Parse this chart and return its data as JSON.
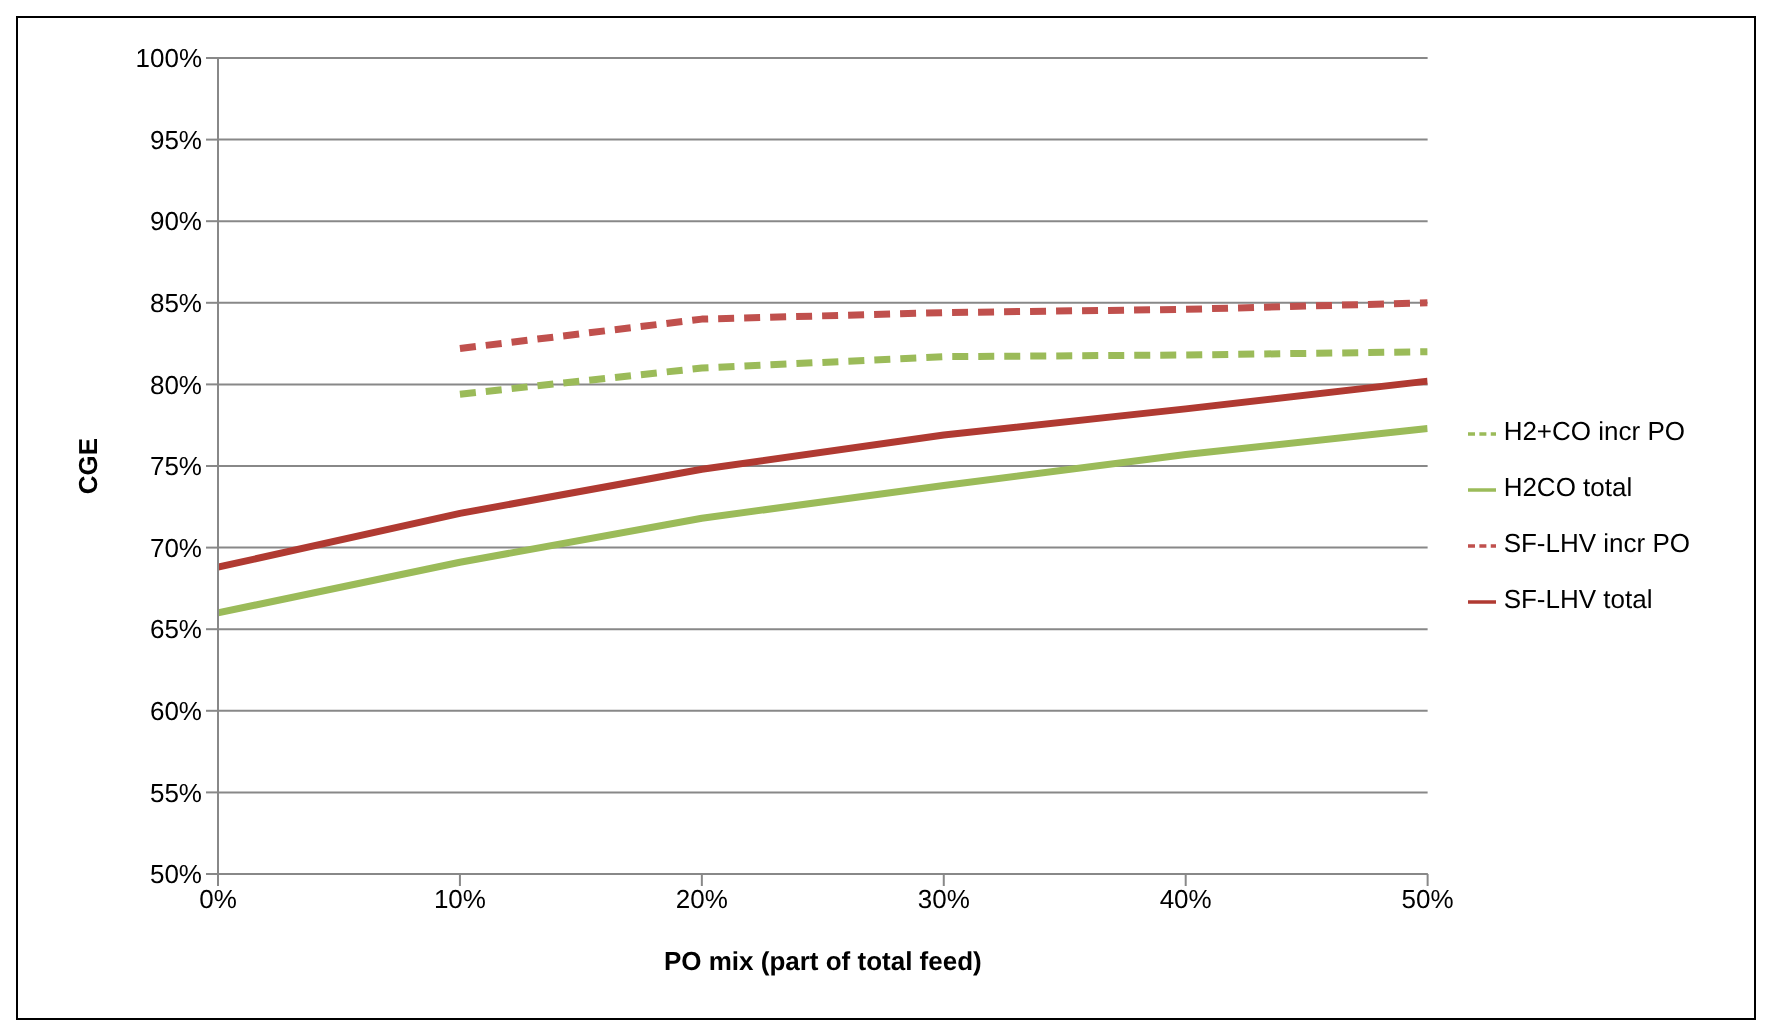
{
  "chart_data": {
    "type": "line",
    "xlabel": "PO mix (part of total feed)",
    "ylabel": "CGE",
    "x": [
      0,
      10,
      20,
      30,
      40,
      50
    ],
    "series": [
      {
        "name": "SF-LHV total",
        "color": "#b03a32",
        "line_style": "solid",
        "values": [
          68.8,
          72.1,
          74.8,
          76.9,
          78.5,
          80.2
        ]
      },
      {
        "name": "H2CO total",
        "color": "#9bbb59",
        "line_style": "solid",
        "values": [
          66.0,
          69.1,
          71.8,
          73.8,
          75.7,
          77.3
        ]
      },
      {
        "name": "SF-LHV incr PO",
        "color": "#c0504d",
        "line_style": "dashed",
        "values": [
          null,
          82.2,
          84.0,
          84.4,
          84.6,
          85.0
        ]
      },
      {
        "name": "H2+CO incr PO",
        "color": "#9bbb59",
        "line_style": "dashed",
        "values": [
          null,
          79.4,
          81.0,
          81.7,
          81.8,
          82.0
        ]
      }
    ],
    "xlim": [
      0,
      50
    ],
    "xticks": [
      {
        "value": 0,
        "label": "0%"
      },
      {
        "value": 10,
        "label": "10%"
      },
      {
        "value": 20,
        "label": "20%"
      },
      {
        "value": 30,
        "label": "30%"
      },
      {
        "value": 40,
        "label": "40%"
      },
      {
        "value": 50,
        "label": "50%"
      }
    ],
    "ylim": [
      50,
      100
    ],
    "yticks": [
      {
        "value": 50,
        "label": "50%"
      },
      {
        "value": 55,
        "label": "55%"
      },
      {
        "value": 60,
        "label": "60%"
      },
      {
        "value": 65,
        "label": "65%"
      },
      {
        "value": 70,
        "label": "70%"
      },
      {
        "value": 75,
        "label": "75%"
      },
      {
        "value": 80,
        "label": "80%"
      },
      {
        "value": 85,
        "label": "85%"
      },
      {
        "value": 90,
        "label": "90%"
      },
      {
        "value": 95,
        "label": "95%"
      },
      {
        "value": 100,
        "label": "100%"
      }
    ],
    "grid": "y",
    "legend": "right",
    "marker": "none"
  }
}
